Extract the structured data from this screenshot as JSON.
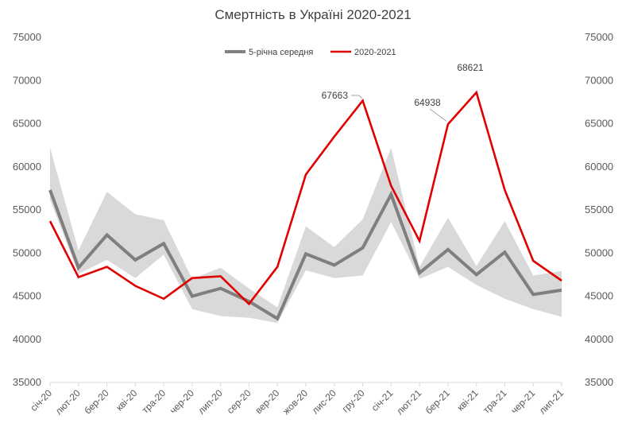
{
  "chart_data": {
    "type": "line",
    "title": "Смертність в Україні 2020-2021",
    "categories": [
      "січ-20",
      "лют-20",
      "бер-20",
      "кві-20",
      "тра-20",
      "чер-20",
      "лип-20",
      "сер-20",
      "вер-20",
      "жов-20",
      "лис-20",
      "гру-20",
      "січ-21",
      "лют-21",
      "бер-21",
      "кві-21",
      "тра-21",
      "чер-21",
      "лип-21"
    ],
    "ylim": [
      35000,
      75000
    ],
    "yticks": [
      "35000",
      "40000",
      "45000",
      "50000",
      "55000",
      "60000",
      "65000",
      "70000",
      "75000"
    ],
    "grid": false,
    "legend_position": "top",
    "band": {
      "upper": [
        62200,
        50300,
        57100,
        54500,
        53800,
        47000,
        48300,
        45900,
        43700,
        53100,
        50700,
        53900,
        62200,
        48400,
        54100,
        48500,
        53700,
        47400,
        47900
      ],
      "lower": [
        56200,
        47600,
        49200,
        47100,
        49800,
        43500,
        42700,
        42500,
        41900,
        48000,
        47100,
        47400,
        53600,
        47000,
        48400,
        46300,
        44700,
        43500,
        42600
      ],
      "color": "#d9d9d9"
    },
    "series": [
      {
        "name": "5-річна середня",
        "color": "#7f7f7f",
        "values": [
          57300,
          48300,
          52100,
          49200,
          51100,
          45000,
          45900,
          44400,
          42400,
          49900,
          48600,
          50600,
          56800,
          47700,
          50400,
          47500,
          50100,
          45200,
          45700
        ]
      },
      {
        "name": "2020-2021",
        "color": "#e00000",
        "values": [
          53700,
          47200,
          48400,
          46200,
          44700,
          47100,
          47300,
          44100,
          48400,
          59100,
          63500,
          67663,
          57800,
          51400,
          64938,
          68621,
          57300,
          49100,
          46800
        ]
      }
    ],
    "annotations": [
      {
        "index": 11,
        "series": 1,
        "text": "67663"
      },
      {
        "index": 14,
        "series": 1,
        "text": "64938"
      },
      {
        "index": 15,
        "series": 1,
        "text": "68621"
      }
    ]
  }
}
